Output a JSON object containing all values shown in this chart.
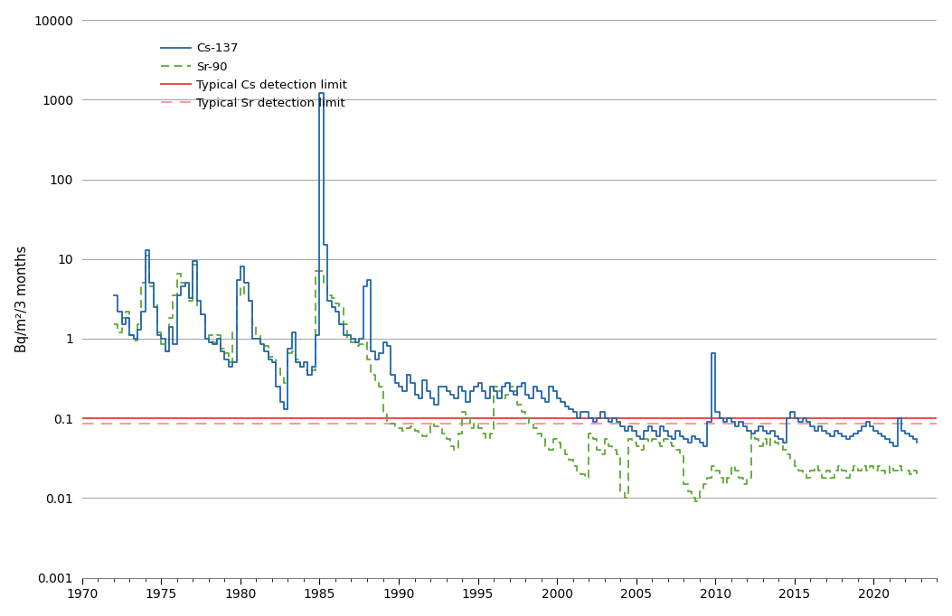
{
  "ylabel": "Bq/m²/3 months",
  "ylim_log": [
    0.001,
    10000
  ],
  "yticks": [
    0.001,
    0.01,
    0.1,
    1,
    10,
    100,
    1000,
    10000
  ],
  "xlim": [
    1970,
    2024
  ],
  "xticks": [
    1970,
    1975,
    1980,
    1985,
    1990,
    1995,
    2000,
    2005,
    2010,
    2015,
    2020
  ],
  "cs_detection_limit": 0.1,
  "sr_detection_limit": 0.085,
  "cs_color": "#2166ac",
  "sr_color": "#5aaa32",
  "cs_det_color": "#e8524a",
  "sr_det_color": "#f4a0a0",
  "legend_labels": [
    "Cs-137",
    "Sr-90",
    "Typical Cs detection limit",
    "Typical Sr detection limit"
  ],
  "cs137_data": [
    [
      1972.0,
      3.5
    ],
    [
      1972.25,
      2.2
    ],
    [
      1972.5,
      1.5
    ],
    [
      1972.75,
      1.8
    ],
    [
      1973.0,
      1.1
    ],
    [
      1973.25,
      1.0
    ],
    [
      1973.5,
      1.3
    ],
    [
      1973.75,
      2.2
    ],
    [
      1974.0,
      13.0
    ],
    [
      1974.25,
      5.0
    ],
    [
      1974.5,
      2.5
    ],
    [
      1974.75,
      1.1
    ],
    [
      1975.0,
      1.0
    ],
    [
      1975.25,
      0.7
    ],
    [
      1975.5,
      1.4
    ],
    [
      1975.75,
      0.85
    ],
    [
      1976.0,
      3.5
    ],
    [
      1976.25,
      4.5
    ],
    [
      1976.5,
      5.0
    ],
    [
      1976.75,
      3.2
    ],
    [
      1977.0,
      9.5
    ],
    [
      1977.25,
      3.0
    ],
    [
      1977.5,
      2.0
    ],
    [
      1977.75,
      1.0
    ],
    [
      1978.0,
      0.9
    ],
    [
      1978.25,
      0.85
    ],
    [
      1978.5,
      1.0
    ],
    [
      1978.75,
      0.7
    ],
    [
      1979.0,
      0.55
    ],
    [
      1979.25,
      0.45
    ],
    [
      1979.5,
      0.5
    ],
    [
      1979.75,
      5.5
    ],
    [
      1980.0,
      8.0
    ],
    [
      1980.25,
      5.0
    ],
    [
      1980.5,
      3.0
    ],
    [
      1980.75,
      1.0
    ],
    [
      1981.0,
      1.0
    ],
    [
      1981.25,
      0.85
    ],
    [
      1981.5,
      0.7
    ],
    [
      1981.75,
      0.55
    ],
    [
      1982.0,
      0.5
    ],
    [
      1982.25,
      0.25
    ],
    [
      1982.5,
      0.16
    ],
    [
      1982.75,
      0.13
    ],
    [
      1983.0,
      0.75
    ],
    [
      1983.25,
      1.2
    ],
    [
      1983.5,
      0.5
    ],
    [
      1983.75,
      0.45
    ],
    [
      1984.0,
      0.5
    ],
    [
      1984.25,
      0.35
    ],
    [
      1984.5,
      0.45
    ],
    [
      1984.75,
      1.1
    ],
    [
      1985.0,
      1200.0
    ],
    [
      1985.25,
      15.0
    ],
    [
      1985.5,
      3.0
    ],
    [
      1985.75,
      2.5
    ],
    [
      1986.0,
      2.2
    ],
    [
      1986.25,
      1.5
    ],
    [
      1986.5,
      1.1
    ],
    [
      1986.75,
      1.1
    ],
    [
      1987.0,
      1.0
    ],
    [
      1987.25,
      0.9
    ],
    [
      1987.5,
      1.0
    ],
    [
      1987.75,
      4.5
    ],
    [
      1988.0,
      5.5
    ],
    [
      1988.25,
      0.7
    ],
    [
      1988.5,
      0.55
    ],
    [
      1988.75,
      0.65
    ],
    [
      1989.0,
      0.9
    ],
    [
      1989.25,
      0.8
    ],
    [
      1989.5,
      0.35
    ],
    [
      1989.75,
      0.28
    ],
    [
      1990.0,
      0.25
    ],
    [
      1990.25,
      0.22
    ],
    [
      1990.5,
      0.35
    ],
    [
      1990.75,
      0.28
    ],
    [
      1991.0,
      0.2
    ],
    [
      1991.25,
      0.18
    ],
    [
      1991.5,
      0.3
    ],
    [
      1991.75,
      0.22
    ],
    [
      1992.0,
      0.18
    ],
    [
      1992.25,
      0.15
    ],
    [
      1992.5,
      0.25
    ],
    [
      1992.75,
      0.25
    ],
    [
      1993.0,
      0.22
    ],
    [
      1993.25,
      0.2
    ],
    [
      1993.5,
      0.18
    ],
    [
      1993.75,
      0.25
    ],
    [
      1994.0,
      0.22
    ],
    [
      1994.25,
      0.16
    ],
    [
      1994.5,
      0.22
    ],
    [
      1994.75,
      0.25
    ],
    [
      1995.0,
      0.28
    ],
    [
      1995.25,
      0.22
    ],
    [
      1995.5,
      0.18
    ],
    [
      1995.75,
      0.25
    ],
    [
      1996.0,
      0.22
    ],
    [
      1996.25,
      0.18
    ],
    [
      1996.5,
      0.25
    ],
    [
      1996.75,
      0.28
    ],
    [
      1997.0,
      0.22
    ],
    [
      1997.25,
      0.2
    ],
    [
      1997.5,
      0.25
    ],
    [
      1997.75,
      0.28
    ],
    [
      1998.0,
      0.2
    ],
    [
      1998.25,
      0.18
    ],
    [
      1998.5,
      0.25
    ],
    [
      1998.75,
      0.22
    ],
    [
      1999.0,
      0.18
    ],
    [
      1999.25,
      0.16
    ],
    [
      1999.5,
      0.25
    ],
    [
      1999.75,
      0.22
    ],
    [
      2000.0,
      0.18
    ],
    [
      2000.25,
      0.16
    ],
    [
      2000.5,
      0.14
    ],
    [
      2000.75,
      0.13
    ],
    [
      2001.0,
      0.12
    ],
    [
      2001.25,
      0.1
    ],
    [
      2001.5,
      0.12
    ],
    [
      2001.75,
      0.12
    ],
    [
      2002.0,
      0.1
    ],
    [
      2002.25,
      0.09
    ],
    [
      2002.5,
      0.1
    ],
    [
      2002.75,
      0.12
    ],
    [
      2003.0,
      0.1
    ],
    [
      2003.25,
      0.09
    ],
    [
      2003.5,
      0.1
    ],
    [
      2003.75,
      0.09
    ],
    [
      2004.0,
      0.08
    ],
    [
      2004.25,
      0.07
    ],
    [
      2004.5,
      0.08
    ],
    [
      2004.75,
      0.07
    ],
    [
      2005.0,
      0.06
    ],
    [
      2005.25,
      0.055
    ],
    [
      2005.5,
      0.07
    ],
    [
      2005.75,
      0.08
    ],
    [
      2006.0,
      0.07
    ],
    [
      2006.25,
      0.06
    ],
    [
      2006.5,
      0.08
    ],
    [
      2006.75,
      0.07
    ],
    [
      2007.0,
      0.06
    ],
    [
      2007.25,
      0.055
    ],
    [
      2007.5,
      0.07
    ],
    [
      2007.75,
      0.06
    ],
    [
      2008.0,
      0.055
    ],
    [
      2008.25,
      0.05
    ],
    [
      2008.5,
      0.06
    ],
    [
      2008.75,
      0.055
    ],
    [
      2009.0,
      0.05
    ],
    [
      2009.25,
      0.045
    ],
    [
      2009.5,
      0.09
    ],
    [
      2009.75,
      0.65
    ],
    [
      2010.0,
      0.12
    ],
    [
      2010.25,
      0.1
    ],
    [
      2010.5,
      0.09
    ],
    [
      2010.75,
      0.1
    ],
    [
      2011.0,
      0.09
    ],
    [
      2011.25,
      0.08
    ],
    [
      2011.5,
      0.09
    ],
    [
      2011.75,
      0.08
    ],
    [
      2012.0,
      0.07
    ],
    [
      2012.25,
      0.065
    ],
    [
      2012.5,
      0.07
    ],
    [
      2012.75,
      0.08
    ],
    [
      2013.0,
      0.07
    ],
    [
      2013.25,
      0.065
    ],
    [
      2013.5,
      0.07
    ],
    [
      2013.75,
      0.06
    ],
    [
      2014.0,
      0.055
    ],
    [
      2014.25,
      0.05
    ],
    [
      2014.5,
      0.1
    ],
    [
      2014.75,
      0.12
    ],
    [
      2015.0,
      0.1
    ],
    [
      2015.25,
      0.09
    ],
    [
      2015.5,
      0.1
    ],
    [
      2015.75,
      0.09
    ],
    [
      2016.0,
      0.08
    ],
    [
      2016.25,
      0.07
    ],
    [
      2016.5,
      0.08
    ],
    [
      2016.75,
      0.07
    ],
    [
      2017.0,
      0.065
    ],
    [
      2017.25,
      0.06
    ],
    [
      2017.5,
      0.07
    ],
    [
      2017.75,
      0.065
    ],
    [
      2018.0,
      0.06
    ],
    [
      2018.25,
      0.055
    ],
    [
      2018.5,
      0.06
    ],
    [
      2018.75,
      0.065
    ],
    [
      2019.0,
      0.07
    ],
    [
      2019.25,
      0.08
    ],
    [
      2019.5,
      0.09
    ],
    [
      2019.75,
      0.08
    ],
    [
      2020.0,
      0.07
    ],
    [
      2020.25,
      0.065
    ],
    [
      2020.5,
      0.06
    ],
    [
      2020.75,
      0.055
    ],
    [
      2021.0,
      0.05
    ],
    [
      2021.25,
      0.045
    ],
    [
      2021.5,
      0.1
    ],
    [
      2021.75,
      0.07
    ],
    [
      2022.0,
      0.065
    ],
    [
      2022.25,
      0.06
    ],
    [
      2022.5,
      0.055
    ],
    [
      2022.75,
      0.05
    ]
  ],
  "sr90_data": [
    [
      1972.0,
      1.5
    ],
    [
      1972.25,
      1.2
    ],
    [
      1972.5,
      1.8
    ],
    [
      1972.75,
      2.2
    ],
    [
      1973.0,
      1.1
    ],
    [
      1973.25,
      0.95
    ],
    [
      1973.5,
      1.5
    ],
    [
      1973.75,
      5.0
    ],
    [
      1974.0,
      11.0
    ],
    [
      1974.25,
      4.5
    ],
    [
      1974.5,
      2.8
    ],
    [
      1974.75,
      1.2
    ],
    [
      1975.0,
      0.85
    ],
    [
      1975.25,
      0.7
    ],
    [
      1975.5,
      1.8
    ],
    [
      1975.75,
      3.5
    ],
    [
      1976.0,
      6.5
    ],
    [
      1976.25,
      5.0
    ],
    [
      1976.5,
      4.5
    ],
    [
      1976.75,
      3.0
    ],
    [
      1977.0,
      8.5
    ],
    [
      1977.25,
      2.5
    ],
    [
      1977.5,
      2.0
    ],
    [
      1977.75,
      1.0
    ],
    [
      1978.0,
      1.1
    ],
    [
      1978.25,
      0.9
    ],
    [
      1978.5,
      1.1
    ],
    [
      1978.75,
      0.75
    ],
    [
      1979.0,
      0.65
    ],
    [
      1979.25,
      0.5
    ],
    [
      1979.5,
      1.2
    ],
    [
      1979.75,
      3.5
    ],
    [
      1980.0,
      4.5
    ],
    [
      1980.25,
      3.5
    ],
    [
      1980.5,
      3.0
    ],
    [
      1980.75,
      1.5
    ],
    [
      1981.0,
      1.1
    ],
    [
      1981.25,
      0.9
    ],
    [
      1981.5,
      0.8
    ],
    [
      1981.75,
      0.6
    ],
    [
      1982.0,
      0.6
    ],
    [
      1982.25,
      0.45
    ],
    [
      1982.5,
      0.35
    ],
    [
      1982.75,
      0.28
    ],
    [
      1983.0,
      0.65
    ],
    [
      1983.25,
      0.7
    ],
    [
      1983.5,
      0.55
    ],
    [
      1983.75,
      0.45
    ],
    [
      1984.0,
      0.4
    ],
    [
      1984.25,
      0.35
    ],
    [
      1984.5,
      0.4
    ],
    [
      1984.75,
      7.0
    ],
    [
      1985.0,
      7.0
    ],
    [
      1985.25,
      5.0
    ],
    [
      1985.5,
      3.5
    ],
    [
      1985.75,
      3.2
    ],
    [
      1986.0,
      2.8
    ],
    [
      1986.25,
      2.5
    ],
    [
      1986.5,
      1.5
    ],
    [
      1986.75,
      1.0
    ],
    [
      1987.0,
      0.9
    ],
    [
      1987.25,
      0.8
    ],
    [
      1987.5,
      0.85
    ],
    [
      1987.75,
      0.9
    ],
    [
      1988.0,
      0.55
    ],
    [
      1988.25,
      0.35
    ],
    [
      1988.5,
      0.3
    ],
    [
      1988.75,
      0.25
    ],
    [
      1989.0,
      0.12
    ],
    [
      1989.25,
      0.09
    ],
    [
      1989.5,
      0.085
    ],
    [
      1989.75,
      0.08
    ],
    [
      1990.0,
      0.075
    ],
    [
      1990.25,
      0.07
    ],
    [
      1990.5,
      0.075
    ],
    [
      1990.75,
      0.08
    ],
    [
      1991.0,
      0.07
    ],
    [
      1991.25,
      0.065
    ],
    [
      1991.5,
      0.06
    ],
    [
      1991.75,
      0.065
    ],
    [
      1992.0,
      0.085
    ],
    [
      1992.25,
      0.08
    ],
    [
      1992.5,
      0.075
    ],
    [
      1992.75,
      0.065
    ],
    [
      1993.0,
      0.055
    ],
    [
      1993.25,
      0.045
    ],
    [
      1993.5,
      0.04
    ],
    [
      1993.75,
      0.065
    ],
    [
      1994.0,
      0.12
    ],
    [
      1994.25,
      0.1
    ],
    [
      1994.5,
      0.075
    ],
    [
      1994.75,
      0.085
    ],
    [
      1995.0,
      0.075
    ],
    [
      1995.25,
      0.065
    ],
    [
      1995.5,
      0.055
    ],
    [
      1995.75,
      0.065
    ],
    [
      1996.0,
      0.25
    ],
    [
      1996.25,
      0.22
    ],
    [
      1996.5,
      0.18
    ],
    [
      1996.75,
      0.2
    ],
    [
      1997.0,
      0.25
    ],
    [
      1997.25,
      0.22
    ],
    [
      1997.5,
      0.15
    ],
    [
      1997.75,
      0.12
    ],
    [
      1998.0,
      0.1
    ],
    [
      1998.25,
      0.085
    ],
    [
      1998.5,
      0.075
    ],
    [
      1998.75,
      0.065
    ],
    [
      1999.0,
      0.055
    ],
    [
      1999.25,
      0.045
    ],
    [
      1999.5,
      0.04
    ],
    [
      1999.75,
      0.055
    ],
    [
      2000.0,
      0.05
    ],
    [
      2000.25,
      0.04
    ],
    [
      2000.5,
      0.035
    ],
    [
      2000.75,
      0.03
    ],
    [
      2001.0,
      0.025
    ],
    [
      2001.25,
      0.022
    ],
    [
      2001.5,
      0.02
    ],
    [
      2001.75,
      0.018
    ],
    [
      2002.0,
      0.065
    ],
    [
      2002.25,
      0.055
    ],
    [
      2002.5,
      0.04
    ],
    [
      2002.75,
      0.035
    ],
    [
      2003.0,
      0.055
    ],
    [
      2003.25,
      0.045
    ],
    [
      2003.5,
      0.04
    ],
    [
      2003.75,
      0.035
    ],
    [
      2004.0,
      0.012
    ],
    [
      2004.25,
      0.01
    ],
    [
      2004.5,
      0.055
    ],
    [
      2004.75,
      0.05
    ],
    [
      2005.0,
      0.045
    ],
    [
      2005.25,
      0.04
    ],
    [
      2005.5,
      0.055
    ],
    [
      2005.75,
      0.05
    ],
    [
      2006.0,
      0.055
    ],
    [
      2006.25,
      0.05
    ],
    [
      2006.5,
      0.045
    ],
    [
      2006.75,
      0.055
    ],
    [
      2007.0,
      0.05
    ],
    [
      2007.25,
      0.045
    ],
    [
      2007.5,
      0.04
    ],
    [
      2007.75,
      0.035
    ],
    [
      2008.0,
      0.015
    ],
    [
      2008.25,
      0.012
    ],
    [
      2008.5,
      0.01
    ],
    [
      2008.75,
      0.009
    ],
    [
      2009.0,
      0.012
    ],
    [
      2009.25,
      0.015
    ],
    [
      2009.5,
      0.018
    ],
    [
      2009.75,
      0.025
    ],
    [
      2010.0,
      0.022
    ],
    [
      2010.25,
      0.018
    ],
    [
      2010.5,
      0.015
    ],
    [
      2010.75,
      0.018
    ],
    [
      2011.0,
      0.025
    ],
    [
      2011.25,
      0.022
    ],
    [
      2011.5,
      0.018
    ],
    [
      2011.75,
      0.015
    ],
    [
      2012.0,
      0.018
    ],
    [
      2012.25,
      0.065
    ],
    [
      2012.5,
      0.055
    ],
    [
      2012.75,
      0.045
    ],
    [
      2013.0,
      0.055
    ],
    [
      2013.25,
      0.045
    ],
    [
      2013.5,
      0.055
    ],
    [
      2013.75,
      0.05
    ],
    [
      2014.0,
      0.045
    ],
    [
      2014.25,
      0.04
    ],
    [
      2014.5,
      0.035
    ],
    [
      2014.75,
      0.03
    ],
    [
      2015.0,
      0.025
    ],
    [
      2015.25,
      0.022
    ],
    [
      2015.5,
      0.02
    ],
    [
      2015.75,
      0.018
    ],
    [
      2016.0,
      0.022
    ],
    [
      2016.25,
      0.025
    ],
    [
      2016.5,
      0.022
    ],
    [
      2016.75,
      0.018
    ],
    [
      2017.0,
      0.022
    ],
    [
      2017.25,
      0.018
    ],
    [
      2017.5,
      0.022
    ],
    [
      2017.75,
      0.025
    ],
    [
      2018.0,
      0.022
    ],
    [
      2018.25,
      0.018
    ],
    [
      2018.5,
      0.022
    ],
    [
      2018.75,
      0.025
    ],
    [
      2019.0,
      0.022
    ],
    [
      2019.25,
      0.025
    ],
    [
      2019.5,
      0.022
    ],
    [
      2019.75,
      0.025
    ],
    [
      2020.0,
      0.022
    ],
    [
      2020.25,
      0.025
    ],
    [
      2020.5,
      0.022
    ],
    [
      2020.75,
      0.02
    ],
    [
      2021.0,
      0.025
    ],
    [
      2021.25,
      0.022
    ],
    [
      2021.5,
      0.025
    ],
    [
      2021.75,
      0.022
    ],
    [
      2022.0,
      0.022
    ],
    [
      2022.25,
      0.02
    ],
    [
      2022.5,
      0.022
    ],
    [
      2022.75,
      0.02
    ]
  ]
}
